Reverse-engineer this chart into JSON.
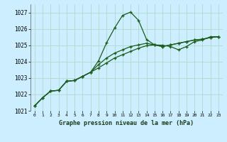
{
  "title": "Graphe pression niveau de la mer (hPa)",
  "bg_color": "#cceeff",
  "grid_color": "#b0d8cc",
  "line_color": "#1a5c1a",
  "x_ticks": [
    0,
    1,
    2,
    3,
    4,
    5,
    6,
    7,
    8,
    9,
    10,
    11,
    12,
    13,
    14,
    15,
    16,
    17,
    18,
    19,
    20,
    21,
    22,
    23
  ],
  "ylim": [
    1021,
    1027.5
  ],
  "yticks": [
    1021,
    1022,
    1023,
    1024,
    1025,
    1026,
    1027
  ],
  "series1_x": [
    0,
    1,
    2,
    3,
    4,
    5,
    6,
    7,
    8,
    9,
    10,
    11,
    12,
    13,
    14,
    15,
    16,
    17,
    18,
    19,
    20,
    21,
    22,
    23
  ],
  "series1_y": [
    1021.3,
    1021.8,
    1022.2,
    1022.25,
    1022.8,
    1022.85,
    1023.1,
    1023.35,
    1024.05,
    1025.15,
    1026.05,
    1026.82,
    1027.02,
    1026.52,
    1025.35,
    1025.02,
    1025.0,
    1024.92,
    1024.72,
    1024.92,
    1025.22,
    1025.32,
    1025.52,
    1025.52
  ],
  "series2_x": [
    0,
    1,
    2,
    3,
    4,
    5,
    6,
    7,
    8,
    9,
    10,
    11,
    12,
    13,
    14,
    15,
    16,
    17,
    18,
    19,
    20,
    21,
    22,
    23
  ],
  "series2_y": [
    1021.3,
    1021.8,
    1022.2,
    1022.25,
    1022.8,
    1022.85,
    1023.1,
    1023.35,
    1023.82,
    1024.22,
    1024.52,
    1024.72,
    1024.92,
    1025.02,
    1025.12,
    1025.02,
    1024.92,
    1025.02,
    1025.12,
    1025.22,
    1025.32,
    1025.37,
    1025.47,
    1025.52
  ],
  "series3_x": [
    0,
    1,
    2,
    3,
    4,
    5,
    6,
    7,
    8,
    9,
    10,
    11,
    12,
    13,
    14,
    15,
    16,
    17,
    18,
    19,
    20,
    21,
    22,
    23
  ],
  "series3_y": [
    1021.3,
    1021.8,
    1022.2,
    1022.25,
    1022.8,
    1022.85,
    1023.1,
    1023.35,
    1023.62,
    1023.92,
    1024.22,
    1024.42,
    1024.62,
    1024.82,
    1024.97,
    1025.02,
    1024.92,
    1025.02,
    1025.12,
    1025.22,
    1025.32,
    1025.37,
    1025.47,
    1025.52
  ]
}
